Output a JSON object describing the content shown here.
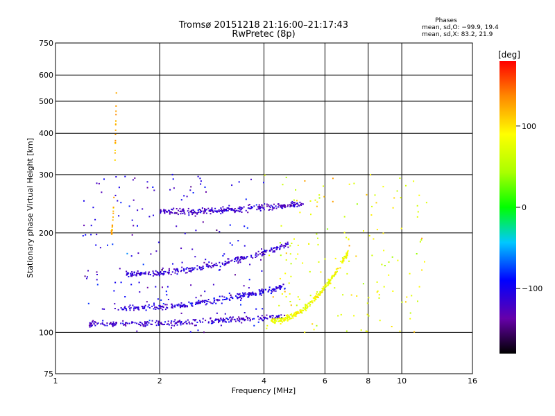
{
  "chart_data": {
    "type": "scatter",
    "title": "Tromsø 20151218 21:16:00–21:17:43",
    "subtitle": "RwPretec (8p)",
    "xlabel": "Frequency [MHz]",
    "ylabel": "Stationary phase Virtual Height [km]",
    "x_scale": "log",
    "y_scale": "log",
    "xlim": [
      1,
      16
    ],
    "ylim": [
      75,
      750
    ],
    "x_ticks": [
      1,
      2,
      4,
      6,
      8,
      10,
      16
    ],
    "x_tick_labels": [
      "1",
      "2",
      "4",
      "6",
      "8",
      "10",
      "16"
    ],
    "y_ticks": [
      75,
      100,
      200,
      300,
      400,
      500,
      600,
      750
    ],
    "y_tick_labels": [
      "75",
      "100",
      "200",
      "300",
      "400",
      "500",
      "600",
      "750"
    ],
    "grid": true,
    "stats": {
      "heading": "Phases",
      "line1": "mean, sd,O: −99.9, 19.4",
      "line2": "mean, sd,X:  83.2, 21.9"
    },
    "colorbar": {
      "label": "[deg]",
      "ticks": [
        100,
        0,
        -100
      ],
      "tick_labels": [
        "100",
        "0",
        "−100"
      ],
      "range": [
        -180,
        180
      ]
    },
    "traces": [
      {
        "name": "O-mode lower trace",
        "x_range": [
          1.25,
          4.6
        ],
        "y_start": 106,
        "y_end": 112,
        "phase": -120
      },
      {
        "name": "O-mode mid trace",
        "x_range": [
          1.5,
          4.6
        ],
        "y_start": 118,
        "y_end": 138,
        "phase": -110
      },
      {
        "name": "O-mode upper trace",
        "x_range": [
          1.6,
          4.7
        ],
        "y_start": 150,
        "y_end": 185,
        "phase": -115
      },
      {
        "name": "F-region trace",
        "x_range": [
          2.0,
          5.2
        ],
        "y_start": 232,
        "y_end": 245,
        "phase": -120
      },
      {
        "name": "X-mode trace",
        "x_range": [
          4.2,
          7.0
        ],
        "y_start": 108,
        "y_end": 175,
        "phase": 85
      },
      {
        "name": "Sporadic column",
        "x_range": [
          1.45,
          1.5
        ],
        "y_start": 200,
        "y_end": 560,
        "phase": 120
      }
    ]
  }
}
